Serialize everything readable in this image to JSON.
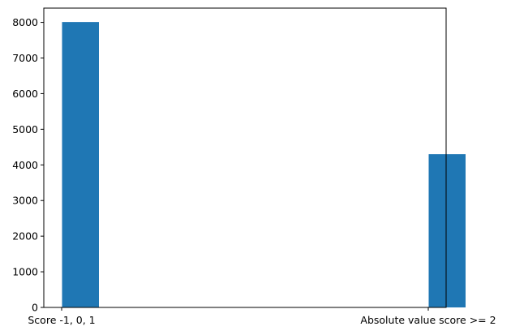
{
  "chart_data": {
    "type": "bar",
    "categories": [
      "Score -1, 0, 1",
      "Absolute value score >= 2"
    ],
    "values": [
      8010,
      4300
    ],
    "title": "",
    "xlabel": "",
    "ylabel": "",
    "ylim": [
      0,
      8400
    ],
    "yticks": [
      0,
      1000,
      2000,
      3000,
      4000,
      5000,
      6000,
      7000,
      8000
    ],
    "grid": false,
    "bar_color": "#1f77b4"
  }
}
